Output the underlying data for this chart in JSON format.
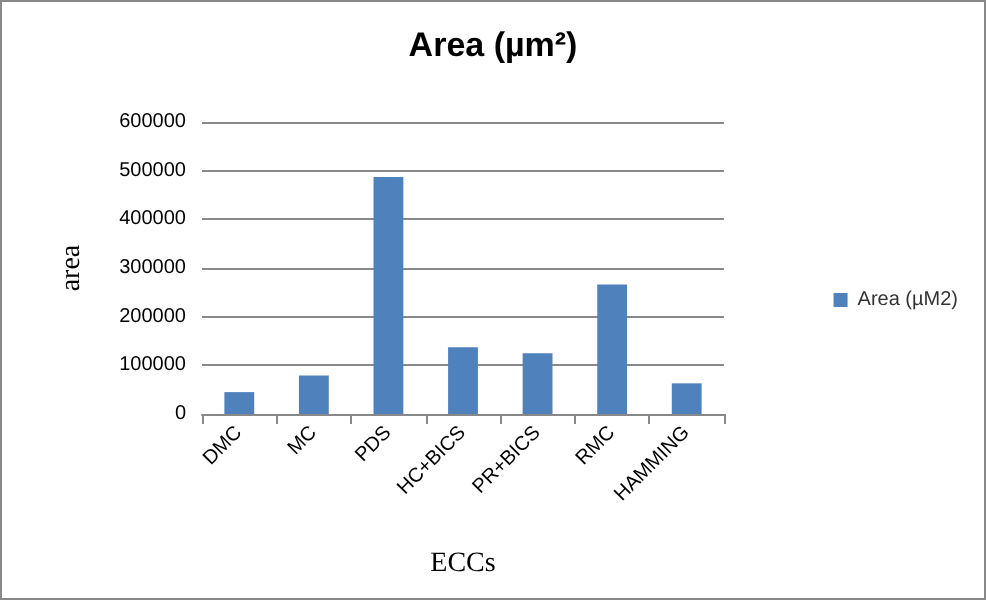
{
  "chart_data": {
    "type": "bar",
    "title": "Area (µm²)",
    "xlabel": "ECCs",
    "ylabel": "area",
    "categories": [
      "DMC",
      "MC",
      "PDS",
      "HC+BICS",
      "PR+BICS",
      "RMC",
      "HAMMING"
    ],
    "series": [
      {
        "name": "Area (µM2)",
        "color": "#4f81bd",
        "values": [
          45000,
          79000,
          487000,
          137000,
          125000,
          266000,
          63000
        ]
      }
    ],
    "ylim": [
      0,
      600000
    ],
    "yticks": [
      0,
      100000,
      200000,
      300000,
      400000,
      500000,
      600000
    ],
    "grid": "y",
    "legend": "right"
  }
}
